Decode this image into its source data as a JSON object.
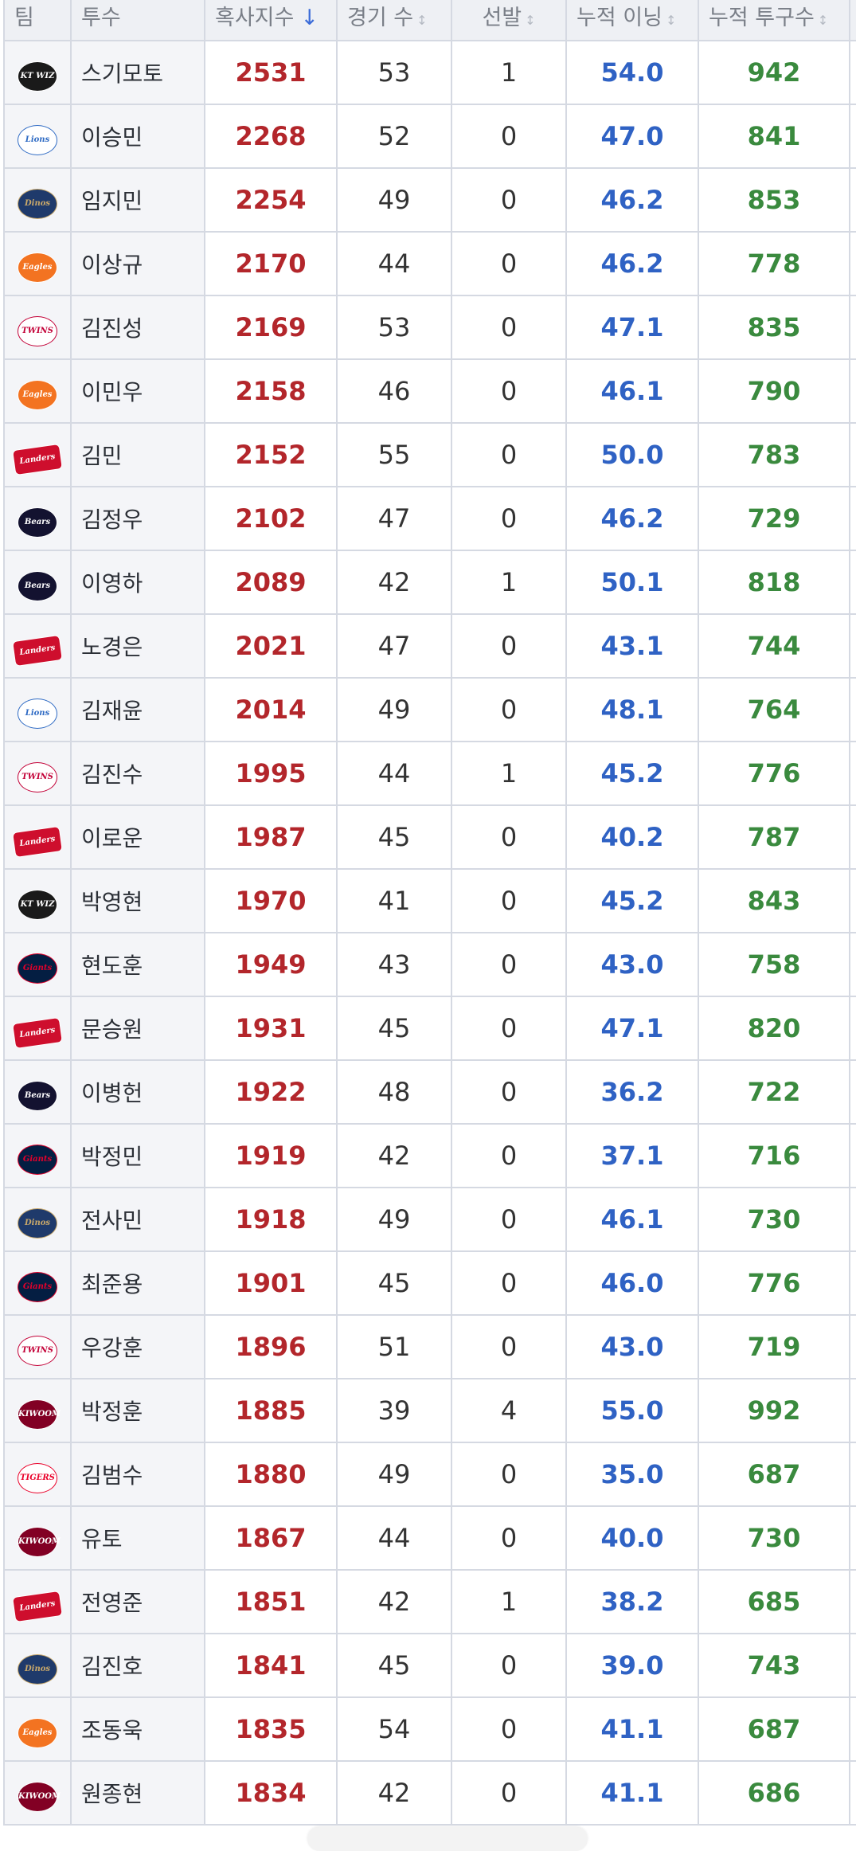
{
  "headers": {
    "team": "팀",
    "pitcher": "투수",
    "hexa": "혹사지수",
    "games": "경기 수",
    "starts": "선발",
    "innings": "누적 이닝",
    "pitches": "누적 투구수",
    "sort_active": "↓",
    "sort_idle": "↕"
  },
  "team_logos": {
    "KT": {
      "label": "KT WIZ",
      "bg": "#1a1a1a",
      "fg": "#ffffff",
      "shape": "round"
    },
    "Lions": {
      "label": "Lions",
      "bg": "#ffffff",
      "fg": "#2f6bc4",
      "shape": "round"
    },
    "Dinos": {
      "label": "Dinos",
      "bg": "#1f3a6b",
      "fg": "#c9a86a",
      "shape": "round"
    },
    "Eagles": {
      "label": "Eagles",
      "bg": "#f37321",
      "fg": "#ffffff",
      "shape": "round"
    },
    "Twins": {
      "label": "TWINS",
      "bg": "#ffffff",
      "fg": "#c30037",
      "shape": "round"
    },
    "Landers": {
      "label": "Landers",
      "bg": "#ce0e2d",
      "fg": "#ffffff",
      "shape": "wide"
    },
    "Bears": {
      "label": "Bears",
      "bg": "#131230",
      "fg": "#ffffff",
      "shape": "round"
    },
    "Giants": {
      "label": "Giants",
      "bg": "#041e42",
      "fg": "#e4002b",
      "shape": "round"
    },
    "Kiwoom": {
      "label": "KIWOOM",
      "bg": "#820024",
      "fg": "#ffffff",
      "shape": "round"
    },
    "Tigers": {
      "label": "TIGERS",
      "bg": "#ffffff",
      "fg": "#ea0029",
      "shape": "round"
    }
  },
  "rows": [
    {
      "team": "KT",
      "name": "스기모토",
      "hexa": "2531",
      "games": "53",
      "starts": "1",
      "innings": "54.0",
      "pitches": "942"
    },
    {
      "team": "Lions",
      "name": "이승민",
      "hexa": "2268",
      "games": "52",
      "starts": "0",
      "innings": "47.0",
      "pitches": "841"
    },
    {
      "team": "Dinos",
      "name": "임지민",
      "hexa": "2254",
      "games": "49",
      "starts": "0",
      "innings": "46.2",
      "pitches": "853"
    },
    {
      "team": "Eagles",
      "name": "이상규",
      "hexa": "2170",
      "games": "44",
      "starts": "0",
      "innings": "46.2",
      "pitches": "778"
    },
    {
      "team": "Twins",
      "name": "김진성",
      "hexa": "2169",
      "games": "53",
      "starts": "0",
      "innings": "47.1",
      "pitches": "835"
    },
    {
      "team": "Eagles",
      "name": "이민우",
      "hexa": "2158",
      "games": "46",
      "starts": "0",
      "innings": "46.1",
      "pitches": "790"
    },
    {
      "team": "Landers",
      "name": "김민",
      "hexa": "2152",
      "games": "55",
      "starts": "0",
      "innings": "50.0",
      "pitches": "783"
    },
    {
      "team": "Bears",
      "name": "김정우",
      "hexa": "2102",
      "games": "47",
      "starts": "0",
      "innings": "46.2",
      "pitches": "729"
    },
    {
      "team": "Bears",
      "name": "이영하",
      "hexa": "2089",
      "games": "42",
      "starts": "1",
      "innings": "50.1",
      "pitches": "818"
    },
    {
      "team": "Landers",
      "name": "노경은",
      "hexa": "2021",
      "games": "47",
      "starts": "0",
      "innings": "43.1",
      "pitches": "744"
    },
    {
      "team": "Lions",
      "name": "김재윤",
      "hexa": "2014",
      "games": "49",
      "starts": "0",
      "innings": "48.1",
      "pitches": "764"
    },
    {
      "team": "Twins",
      "name": "김진수",
      "hexa": "1995",
      "games": "44",
      "starts": "1",
      "innings": "45.2",
      "pitches": "776"
    },
    {
      "team": "Landers",
      "name": "이로운",
      "hexa": "1987",
      "games": "45",
      "starts": "0",
      "innings": "40.2",
      "pitches": "787"
    },
    {
      "team": "KT",
      "name": "박영현",
      "hexa": "1970",
      "games": "41",
      "starts": "0",
      "innings": "45.2",
      "pitches": "843"
    },
    {
      "team": "Giants",
      "name": "현도훈",
      "hexa": "1949",
      "games": "43",
      "starts": "0",
      "innings": "43.0",
      "pitches": "758"
    },
    {
      "team": "Landers",
      "name": "문승원",
      "hexa": "1931",
      "games": "45",
      "starts": "0",
      "innings": "47.1",
      "pitches": "820"
    },
    {
      "team": "Bears",
      "name": "이병헌",
      "hexa": "1922",
      "games": "48",
      "starts": "0",
      "innings": "36.2",
      "pitches": "722"
    },
    {
      "team": "Giants",
      "name": "박정민",
      "hexa": "1919",
      "games": "42",
      "starts": "0",
      "innings": "37.1",
      "pitches": "716"
    },
    {
      "team": "Dinos",
      "name": "전사민",
      "hexa": "1918",
      "games": "49",
      "starts": "0",
      "innings": "46.1",
      "pitches": "730"
    },
    {
      "team": "Giants",
      "name": "최준용",
      "hexa": "1901",
      "games": "45",
      "starts": "0",
      "innings": "46.0",
      "pitches": "776"
    },
    {
      "team": "Twins",
      "name": "우강훈",
      "hexa": "1896",
      "games": "51",
      "starts": "0",
      "innings": "43.0",
      "pitches": "719"
    },
    {
      "team": "Kiwoom",
      "name": "박정훈",
      "hexa": "1885",
      "games": "39",
      "starts": "4",
      "innings": "55.0",
      "pitches": "992"
    },
    {
      "team": "Tigers",
      "name": "김범수",
      "hexa": "1880",
      "games": "49",
      "starts": "0",
      "innings": "35.0",
      "pitches": "687"
    },
    {
      "team": "Kiwoom",
      "name": "유토",
      "hexa": "1867",
      "games": "44",
      "starts": "0",
      "innings": "40.0",
      "pitches": "730"
    },
    {
      "team": "Landers",
      "name": "전영준",
      "hexa": "1851",
      "games": "42",
      "starts": "1",
      "innings": "38.2",
      "pitches": "685"
    },
    {
      "team": "Dinos",
      "name": "김진호",
      "hexa": "1841",
      "games": "45",
      "starts": "0",
      "innings": "39.0",
      "pitches": "743"
    },
    {
      "team": "Eagles",
      "name": "조동욱",
      "hexa": "1835",
      "games": "54",
      "starts": "0",
      "innings": "41.1",
      "pitches": "687"
    },
    {
      "team": "Kiwoom",
      "name": "원종현",
      "hexa": "1834",
      "games": "42",
      "starts": "0",
      "innings": "41.1",
      "pitches": "686"
    }
  ]
}
